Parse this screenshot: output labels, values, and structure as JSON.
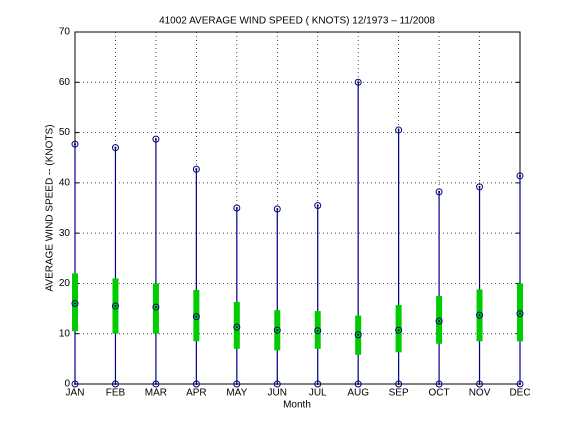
{
  "chart_data": {
    "type": "range",
    "title": "41002  AVERAGE WIND SPEED ( KNOTS) 12/1973 – 11/2008",
    "x_label": "Month",
    "y_label": "AVERAGE WIND SPEED -- (KNOTS)",
    "categories": [
      "JAN",
      "FEB",
      "MAR",
      "APR",
      "MAY",
      "JUN",
      "JUL",
      "AUG",
      "SEP",
      "OCT",
      "NOV",
      "DEC"
    ],
    "min": [
      0,
      0,
      0,
      0,
      0,
      0,
      0,
      0,
      0,
      0,
      0,
      0
    ],
    "max": [
      47.7,
      47,
      48.7,
      42.7,
      35,
      34.8,
      35.5,
      60,
      50.5,
      38.2,
      39.2,
      41.4
    ],
    "mean": [
      16,
      15.5,
      15.3,
      13.4,
      11.3,
      10.7,
      10.6,
      9.8,
      10.7,
      12.5,
      13.7,
      14
    ],
    "band_low": [
      10.5,
      10,
      10,
      8.5,
      7,
      6.7,
      7,
      5.8,
      6.3,
      8,
      8.5,
      8.5
    ],
    "band_high": [
      22,
      21,
      20,
      18.7,
      16.3,
      14.7,
      14.5,
      13.6,
      15.7,
      17.5,
      18.8,
      20
    ],
    "line_color": "#00008b",
    "band_color": "#00cc00",
    "ylim": [
      0,
      70
    ],
    "yticks": [
      0,
      10,
      20,
      30,
      40,
      50,
      60,
      70
    ],
    "grid": true
  }
}
